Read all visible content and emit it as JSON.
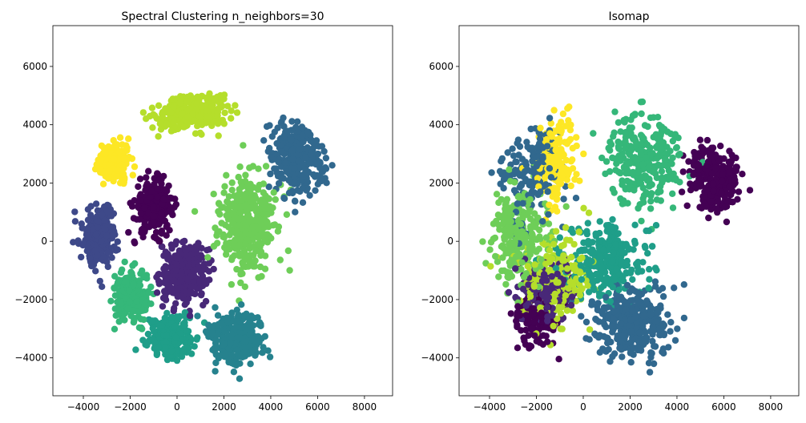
{
  "figure": {
    "colormap": [
      "#440154",
      "#482878",
      "#3e4989",
      "#31688e",
      "#26828e",
      "#1f9e89",
      "#35b779",
      "#6ece58",
      "#b5de2b",
      "#fde725"
    ]
  },
  "chart_data": [
    {
      "type": "scatter",
      "title": "Spectral Clustering n_neighbors=30",
      "xlabel": "",
      "ylabel": "",
      "xlim": [
        -5300,
        9200
      ],
      "ylim": [
        -5300,
        7400
      ],
      "xticks": [
        -4000,
        -2000,
        0,
        2000,
        4000,
        6000,
        8000
      ],
      "yticks": [
        -4000,
        -2000,
        0,
        2000,
        4000,
        6000
      ],
      "xtick_labels": [
        "−4000",
        "−2000",
        "0",
        "2000",
        "4000",
        "6000",
        "8000"
      ],
      "ytick_labels": [
        "−4000",
        "−2000",
        "0",
        "2000",
        "4000",
        "6000"
      ],
      "grid": false,
      "legend": "none",
      "clusters": [
        {
          "label": 0,
          "color": "#440154",
          "center": [
            -1000,
            1200
          ],
          "spread": [
            750,
            800
          ],
          "count": 260
        },
        {
          "label": 1,
          "color": "#482878",
          "center": [
            300,
            -1100
          ],
          "spread": [
            900,
            900
          ],
          "count": 300
        },
        {
          "label": 2,
          "color": "#3e4989",
          "center": [
            -3300,
            200
          ],
          "spread": [
            650,
            950
          ],
          "count": 230
        },
        {
          "label": 3,
          "color": "#31688e",
          "center": [
            5200,
            2900
          ],
          "spread": [
            1000,
            1150
          ],
          "count": 320
        },
        {
          "label": 4,
          "color": "#26828e",
          "center": [
            2500,
            -3300
          ],
          "spread": [
            1100,
            800
          ],
          "count": 300
        },
        {
          "label": 5,
          "color": "#1f9e89",
          "center": [
            -300,
            -3300
          ],
          "spread": [
            850,
            650
          ],
          "count": 230
        },
        {
          "label": 6,
          "color": "#35b779",
          "center": [
            -2000,
            -1900
          ],
          "spread": [
            650,
            750
          ],
          "count": 220
        },
        {
          "label": 7,
          "color": "#6ece58",
          "center": [
            3000,
            600
          ],
          "spread": [
            1100,
            1500
          ],
          "count": 360
        },
        {
          "label": 8,
          "color": "#b5de2b",
          "center": [
            500,
            4700
          ],
          "spread": [
            1500,
            750
          ],
          "count": 280
        },
        {
          "label": 9,
          "color": "#fde725",
          "center": [
            -2700,
            2700
          ],
          "spread": [
            550,
            650
          ],
          "count": 200
        }
      ]
    },
    {
      "type": "scatter",
      "title": "Isomap",
      "xlabel": "",
      "ylabel": "",
      "xlim": [
        -5300,
        9200
      ],
      "ylim": [
        -5300,
        7400
      ],
      "xticks": [
        -4000,
        -2000,
        0,
        2000,
        4000,
        6000,
        8000
      ],
      "yticks": [
        -4000,
        -2000,
        0,
        2000,
        4000,
        6000
      ],
      "xtick_labels": [
        "−4000",
        "−2000",
        "0",
        "2000",
        "4000",
        "6000",
        "8000"
      ],
      "ytick_labels": [
        "−4000",
        "−2000",
        "0",
        "2000",
        "4000",
        "6000"
      ],
      "grid": false,
      "legend": "none",
      "clusters": [
        {
          "label": 0,
          "color": "#440154",
          "center": [
            5600,
            2200
          ],
          "spread": [
            1000,
            1100
          ],
          "count": 280
        },
        {
          "label": 0,
          "color": "#440154",
          "center": [
            -2000,
            -2800
          ],
          "spread": [
            800,
            800
          ],
          "count": 120
        },
        {
          "label": 1,
          "color": "#482878",
          "center": [
            -1500,
            -1700
          ],
          "spread": [
            900,
            800
          ],
          "count": 200
        },
        {
          "label": 3,
          "color": "#31688e",
          "center": [
            2000,
            -2800
          ],
          "spread": [
            1500,
            1100
          ],
          "count": 340
        },
        {
          "label": 3,
          "color": "#31688e",
          "center": [
            -2200,
            2300
          ],
          "spread": [
            1200,
            1400
          ],
          "count": 180
        },
        {
          "label": 5,
          "color": "#1f9e89",
          "center": [
            1000,
            -700
          ],
          "spread": [
            1600,
            1200
          ],
          "count": 260
        },
        {
          "label": 6,
          "color": "#35b779",
          "center": [
            2600,
            2800
          ],
          "spread": [
            1400,
            1400
          ],
          "count": 300
        },
        {
          "label": 7,
          "color": "#6ece58",
          "center": [
            -2800,
            200
          ],
          "spread": [
            1100,
            1600
          ],
          "count": 240
        },
        {
          "label": 8,
          "color": "#b5de2b",
          "center": [
            -1300,
            -1200
          ],
          "spread": [
            1300,
            1400
          ],
          "count": 220
        },
        {
          "label": 9,
          "color": "#fde725",
          "center": [
            -1200,
            2800
          ],
          "spread": [
            700,
            1300
          ],
          "count": 180
        }
      ]
    }
  ]
}
